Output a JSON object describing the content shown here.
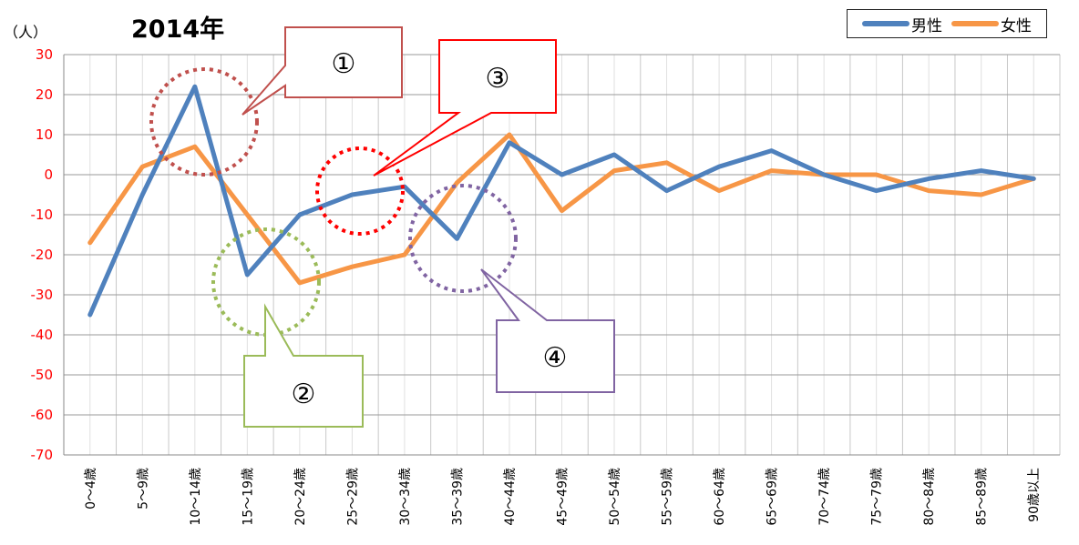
{
  "chart_data": {
    "type": "line",
    "title": "2014年",
    "ylabel": "（人）",
    "ylim": [
      -70,
      30
    ],
    "yticks": [
      30,
      20,
      10,
      0,
      -10,
      -20,
      -30,
      -40,
      -50,
      -60,
      -70
    ],
    "categories": [
      "0～4歳",
      "5～9歳",
      "10～14歳",
      "15～19歳",
      "20～24歳",
      "25～29歳",
      "30～34歳",
      "35～39歳",
      "40～44歳",
      "45～49歳",
      "50～54歳",
      "55～59歳",
      "60～64歳",
      "65～69歳",
      "70～74歳",
      "75～79歳",
      "80～84歳",
      "85～89歳",
      "90歳以上"
    ],
    "series": [
      {
        "name": "男性",
        "color": "#4f81bd",
        "values": [
          -35,
          -5,
          22,
          -25,
          -10,
          -5,
          -3,
          -16,
          8,
          0,
          5,
          -4,
          2,
          6,
          0,
          -4,
          -1,
          1,
          -1
        ]
      },
      {
        "name": "女性",
        "color": "#f79646",
        "values": [
          -17,
          2,
          7,
          -10,
          -27,
          -23,
          -20,
          -2,
          10,
          -9,
          1,
          3,
          -4,
          1,
          0,
          0,
          -4,
          -5,
          -1
        ]
      }
    ],
    "legend": "top-right",
    "grid": true,
    "annotations": [
      {
        "label": "①",
        "color": "#c0504d",
        "circle_color": "#c0504d",
        "target_category": "10～14歳"
      },
      {
        "label": "②",
        "color": "#9bbb59",
        "circle_color": "#9bbb59",
        "target_category": "15～19歳"
      },
      {
        "label": "③",
        "color": "#ff0000",
        "circle_color": "#ff0000",
        "target_category": "25～29歳"
      },
      {
        "label": "④",
        "color": "#8064a2",
        "circle_color": "#8064a2",
        "target_category": "35～39歳"
      }
    ]
  }
}
